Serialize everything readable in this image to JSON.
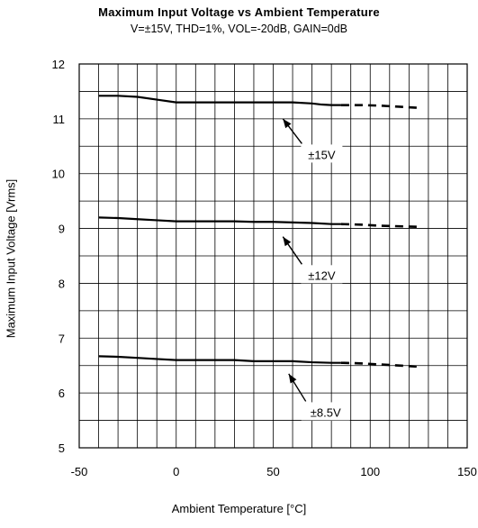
{
  "chart_data": {
    "type": "line",
    "title": "Maximum Input Voltage vs Ambient Temperature",
    "subtitle": "V=±15V, THD=1%, VOL=-20dB, GAIN=0dB",
    "xlabel": "Ambient Temperature [°C]",
    "ylabel": "Maximum Input Voltage [Vrms]",
    "xlim": [
      -50,
      150
    ],
    "ylim": [
      5,
      12
    ],
    "xticks": [
      "-50",
      "0",
      "50",
      "100",
      "150"
    ],
    "yticks": [
      "5",
      "6",
      "7",
      "8",
      "9",
      "10",
      "11",
      "12"
    ],
    "grid": true,
    "series": [
      {
        "name": "±15V",
        "solid": {
          "x": [
            -40,
            -30,
            -20,
            -10,
            0,
            10,
            20,
            30,
            40,
            50,
            60,
            70,
            75,
            80,
            85
          ],
          "y": [
            11.42,
            11.42,
            11.4,
            11.35,
            11.3,
            11.3,
            11.3,
            11.3,
            11.3,
            11.3,
            11.3,
            11.28,
            11.26,
            11.25,
            11.25
          ]
        },
        "dashed": {
          "x": [
            85,
            95,
            105,
            115,
            125
          ],
          "y": [
            11.25,
            11.25,
            11.24,
            11.22,
            11.2
          ]
        }
      },
      {
        "name": "±12V",
        "solid": {
          "x": [
            -40,
            -30,
            -20,
            -10,
            0,
            10,
            20,
            30,
            40,
            50,
            60,
            70,
            80,
            85
          ],
          "y": [
            9.2,
            9.19,
            9.17,
            9.15,
            9.13,
            9.13,
            9.13,
            9.13,
            9.12,
            9.12,
            9.11,
            9.1,
            9.08,
            9.08
          ]
        },
        "dashed": {
          "x": [
            85,
            95,
            105,
            115,
            125
          ],
          "y": [
            9.08,
            9.07,
            9.05,
            9.04,
            9.03
          ]
        }
      },
      {
        "name": "±8.5V",
        "solid": {
          "x": [
            -40,
            -30,
            -20,
            -10,
            0,
            10,
            20,
            30,
            40,
            50,
            60,
            70,
            80,
            85
          ],
          "y": [
            6.67,
            6.66,
            6.64,
            6.62,
            6.6,
            6.6,
            6.6,
            6.6,
            6.58,
            6.58,
            6.58,
            6.56,
            6.55,
            6.55
          ]
        },
        "dashed": {
          "x": [
            85,
            95,
            105,
            115,
            125
          ],
          "y": [
            6.55,
            6.54,
            6.52,
            6.5,
            6.48
          ]
        }
      }
    ],
    "annotations": [
      {
        "label": "±15V",
        "arrow_to": [
          55,
          11.0
        ],
        "text_at": [
          75,
          10.35
        ]
      },
      {
        "label": "±12V",
        "arrow_to": [
          55,
          8.85
        ],
        "text_at": [
          75,
          8.15
        ]
      },
      {
        "label": "±8.5V",
        "arrow_to": [
          58,
          6.35
        ],
        "text_at": [
          77,
          5.65
        ]
      }
    ]
  }
}
